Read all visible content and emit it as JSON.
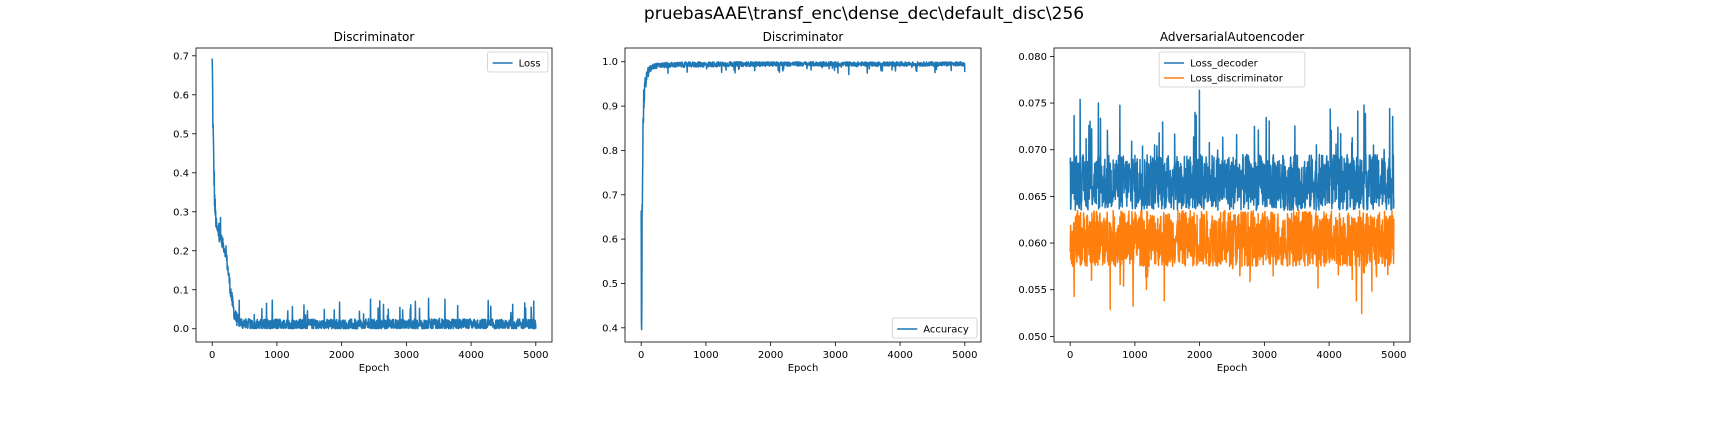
{
  "suptitle": "pruebasAAE\\transf_enc\\dense_dec\\default_disc\\256",
  "chart_data": [
    {
      "type": "line",
      "title": "Discriminator",
      "xlabel": "Epoch",
      "ylabel": "",
      "xlim": [
        -250,
        5250
      ],
      "ylim": [
        -0.034,
        0.72
      ],
      "xticks": [
        0,
        1000,
        2000,
        3000,
        4000,
        5000
      ],
      "yticks": [
        0.0,
        0.1,
        0.2,
        0.3,
        0.4,
        0.5,
        0.6,
        0.7
      ],
      "ytick_decimals": 1,
      "legend": "top-right",
      "grid": false,
      "series": [
        {
          "name": "Loss",
          "color": "#1f77b4",
          "x": [
            0,
            5,
            10,
            20,
            40,
            60,
            80,
            100,
            130,
            160,
            200,
            230,
            260,
            300,
            330,
            360,
            400,
            450,
            500,
            600,
            800,
            1000,
            1500,
            2000,
            2500,
            3000,
            3500,
            4000,
            4500,
            5000
          ],
          "y": [
            0.69,
            0.65,
            0.55,
            0.45,
            0.32,
            0.27,
            0.25,
            0.24,
            0.235,
            0.22,
            0.2,
            0.17,
            0.13,
            0.08,
            0.05,
            0.03,
            0.02,
            0.015,
            0.013,
            0.01,
            0.01,
            0.01,
            0.01,
            0.01,
            0.01,
            0.01,
            0.01,
            0.01,
            0.01,
            0.01
          ],
          "noise": [
            0.01,
            0.02,
            0.04,
            0.05,
            0.04,
            0.02,
            0.015,
            0.015,
            0.015,
            0.015,
            0.015,
            0.02,
            0.02,
            0.02,
            0.02,
            0.02,
            0.015,
            0.015,
            0.015,
            0.015,
            0.015,
            0.015,
            0.015,
            0.015,
            0.015,
            0.015,
            0.015,
            0.015,
            0.015,
            0.015
          ],
          "spike": 0.06
        }
      ]
    },
    {
      "type": "line",
      "title": "Discriminator",
      "xlabel": "Epoch",
      "ylabel": "",
      "xlim": [
        -250,
        5250
      ],
      "ylim": [
        0.368,
        1.031
      ],
      "xticks": [
        0,
        1000,
        2000,
        3000,
        4000,
        5000
      ],
      "yticks": [
        0.4,
        0.5,
        0.6,
        0.7,
        0.8,
        0.9,
        1.0
      ],
      "ytick_decimals": 1,
      "legend": "bottom-right",
      "grid": false,
      "series": [
        {
          "name": "Accuracy",
          "color": "#1f77b4",
          "x": [
            0,
            5,
            10,
            20,
            30,
            40,
            60,
            80,
            100,
            150,
            200,
            300,
            500,
            1000,
            2000,
            3000,
            4000,
            5000
          ],
          "y": [
            0.65,
            0.4,
            0.5,
            0.75,
            0.86,
            0.91,
            0.945,
            0.965,
            0.975,
            0.985,
            0.99,
            0.992,
            0.993,
            0.994,
            0.995,
            0.995,
            0.995,
            0.995
          ],
          "noise": [
            0.02,
            0.06,
            0.08,
            0.06,
            0.04,
            0.03,
            0.02,
            0.015,
            0.012,
            0.008,
            0.006,
            0.006,
            0.006,
            0.006,
            0.005,
            0.005,
            0.005,
            0.005
          ],
          "spike": -0.02
        }
      ]
    },
    {
      "type": "line",
      "title": "AdversarialAutoencoder",
      "xlabel": "Epoch",
      "ylabel": "",
      "xlim": [
        -250,
        5250
      ],
      "ylim": [
        0.0494,
        0.0809
      ],
      "xticks": [
        0,
        1000,
        2000,
        3000,
        4000,
        5000
      ],
      "yticks": [
        0.05,
        0.055,
        0.06,
        0.065,
        0.07,
        0.075,
        0.08
      ],
      "ytick_decimals": 3,
      "legend": "top-center",
      "grid": false,
      "series": [
        {
          "name": "Loss_decoder",
          "color": "#1f77b4",
          "x": [
            0,
            50,
            200,
            500,
            1000,
            2000,
            3000,
            4000,
            5000
          ],
          "y": [
            0.0665,
            0.0665,
            0.0665,
            0.0665,
            0.0665,
            0.0665,
            0.0665,
            0.0665,
            0.0665
          ],
          "noise": [
            0.003,
            0.003,
            0.003,
            0.003,
            0.003,
            0.003,
            0.003,
            0.003,
            0.003
          ],
          "spike": 0.0072
        },
        {
          "name": "Loss_discriminator",
          "color": "#ff7f0e",
          "x": [
            0,
            50,
            200,
            500,
            1000,
            2000,
            3000,
            4000,
            5000
          ],
          "y": [
            0.0605,
            0.0605,
            0.0605,
            0.0605,
            0.0605,
            0.0605,
            0.0605,
            0.0605,
            0.0605
          ],
          "noise": [
            0.003,
            0.003,
            0.003,
            0.003,
            0.003,
            0.003,
            0.003,
            0.003,
            0.003
          ],
          "spike": -0.0055
        }
      ]
    }
  ]
}
